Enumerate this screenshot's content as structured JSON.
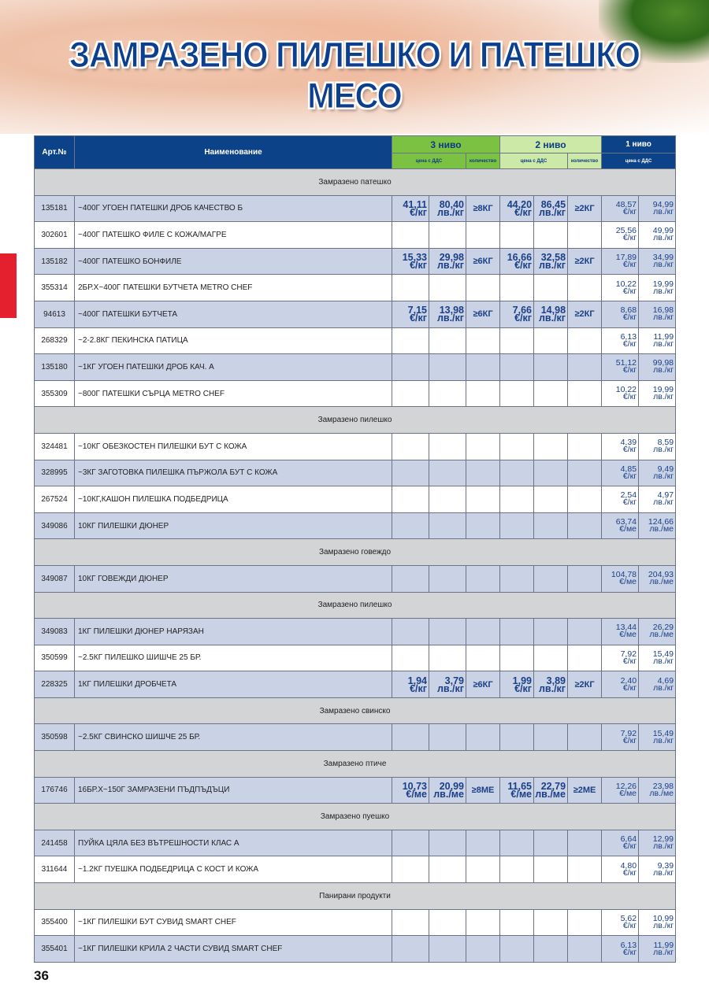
{
  "title": "ЗАМРАЗЕНО ПИЛЕШКО И ПАТЕШКО МЕСО",
  "page_number": "36",
  "colors": {
    "header_blue": "#0c4288",
    "tier3_green": "#7cc242",
    "tier2_green": "#cde9a8",
    "row_shade": "#cad3e6",
    "section_gray": "#d3d4d6",
    "side_tab_red": "#e4202e"
  },
  "header": {
    "art": "Арт.№",
    "name": "Наименование",
    "tier3": "3 ниво",
    "tier2": "2 ниво",
    "tier1": "1 ниво",
    "price_vat": "цена с ДДС",
    "quantity": "количество"
  },
  "sections": [
    {
      "title": "Замразено патешко",
      "items": [
        {
          "art": "135181",
          "name": "~400Г УГОЕН ПАТЕШКИ ДРОБ КАЧЕСТВО Б",
          "shaded": true,
          "t3": [
            "41,11",
            "€/кг",
            "80,40",
            "лв./кг",
            "≥8КГ"
          ],
          "t2": [
            "44,20",
            "€/кг",
            "86,45",
            "лв./кг",
            "≥2КГ"
          ],
          "t1": [
            "48,57",
            "€/кг",
            "94,99",
            "лв./кг"
          ]
        },
        {
          "art": "302601",
          "name": "~400Г ПАТЕШКО ФИЛЕ С КОЖА/МАГРЕ",
          "shaded": false,
          "t1": [
            "25,56",
            "€/кг",
            "49,99",
            "лв./кг"
          ]
        },
        {
          "art": "135182",
          "name": "~400Г ПАТЕШКО БОНФИЛЕ",
          "shaded": true,
          "t3": [
            "15,33",
            "€/кг",
            "29,98",
            "лв./кг",
            "≥6КГ"
          ],
          "t2": [
            "16,66",
            "€/кг",
            "32,58",
            "лв./кг",
            "≥2КГ"
          ],
          "t1": [
            "17,89",
            "€/кг",
            "34,99",
            "лв./кг"
          ]
        },
        {
          "art": "355314",
          "name": "2БР.Х~400Г ПАТЕШКИ БУТЧЕТА METRO CHEF",
          "shaded": false,
          "t1": [
            "10,22",
            "€/кг",
            "19,99",
            "лв./кг"
          ]
        },
        {
          "art": "94613",
          "name": "~400Г ПАТЕШКИ БУТЧЕТА",
          "shaded": true,
          "t3": [
            "7,15",
            "€/кг",
            "13,98",
            "лв./кг",
            "≥6КГ"
          ],
          "t2": [
            "7,66",
            "€/кг",
            "14,98",
            "лв./кг",
            "≥2КГ"
          ],
          "t1": [
            "8,68",
            "€/кг",
            "16,98",
            "лв./кг"
          ]
        },
        {
          "art": "268329",
          "name": "~2-2.8КГ ПЕКИНСКА ПАТИЦА",
          "shaded": false,
          "t1": [
            "6,13",
            "€/кг",
            "11,99",
            "лв./кг"
          ]
        },
        {
          "art": "135180",
          "name": "~1КГ УГОЕН ПАТЕШКИ ДРОБ КАЧ. А",
          "shaded": true,
          "t1": [
            "51,12",
            "€/кг",
            "99,98",
            "лв./кг"
          ]
        },
        {
          "art": "355309",
          "name": "~800Г ПАТЕШКИ СЪРЦА METRO CHEF",
          "shaded": false,
          "t1": [
            "10,22",
            "€/кг",
            "19,99",
            "лв./кг"
          ]
        }
      ]
    },
    {
      "title": "Замразено пилешко",
      "items": [
        {
          "art": "324481",
          "name": "~10КГ ОБЕЗКОСТЕН ПИЛЕШКИ БУТ С КОЖА",
          "shaded": false,
          "t1": [
            "4,39",
            "€/кг",
            "8,59",
            "лв./кг"
          ]
        },
        {
          "art": "328995",
          "name": "~3КГ ЗАГОТОВКА ПИЛЕШКА ПЪРЖОЛА БУТ С КОЖА",
          "shaded": true,
          "t1": [
            "4,85",
            "€/кг",
            "9,49",
            "лв./кг"
          ]
        },
        {
          "art": "267524",
          "name": "~10КГ,КАШОН ПИЛЕШКА ПОДБЕДРИЦА",
          "shaded": false,
          "t1": [
            "2,54",
            "€/кг",
            "4,97",
            "лв./кг"
          ]
        },
        {
          "art": "349086",
          "name": "10КГ ПИЛЕШКИ ДЮНЕР",
          "shaded": true,
          "t1": [
            "63,74",
            "€/ме",
            "124,66",
            "лв./ме"
          ]
        }
      ]
    },
    {
      "title": "Замразено говеждо",
      "items": [
        {
          "art": "349087",
          "name": "10КГ ГОВЕЖДИ ДЮНЕР",
          "shaded": true,
          "t1": [
            "104,78",
            "€/ме",
            "204,93",
            "лв./ме"
          ]
        }
      ]
    },
    {
      "title": "Замразено пилешко",
      "items": [
        {
          "art": "349083",
          "name": "1КГ ПИЛЕШКИ ДЮНЕР НАРЯЗАН",
          "shaded": true,
          "t1": [
            "13,44",
            "€/ме",
            "26,29",
            "лв./ме"
          ]
        },
        {
          "art": "350599",
          "name": "~2.5КГ ПИЛЕШКО ШИШЧЕ 25 БР.",
          "shaded": false,
          "t1": [
            "7,92",
            "€/кг",
            "15,49",
            "лв./кг"
          ]
        },
        {
          "art": "228325",
          "name": "1КГ ПИЛЕШКИ ДРОБЧЕТА",
          "shaded": true,
          "t3": [
            "1,94",
            "€/кг",
            "3,79",
            "лв./кг",
            "≥6КГ"
          ],
          "t2": [
            "1,99",
            "€/кг",
            "3,89",
            "лв./кг",
            "≥2КГ"
          ],
          "t1": [
            "2,40",
            "€/кг",
            "4,69",
            "лв./кг"
          ]
        }
      ]
    },
    {
      "title": "Замразено свинско",
      "items": [
        {
          "art": "350598",
          "name": "~2.5КГ СВИНСКО ШИШЧЕ 25 БР.",
          "shaded": true,
          "t1": [
            "7,92",
            "€/кг",
            "15,49",
            "лв./кг"
          ]
        }
      ]
    },
    {
      "title": "Замразено птиче",
      "items": [
        {
          "art": "176746",
          "name": "16БР.Х~150Г ЗАМРАЗЕНИ ПЪДПЪДЪЦИ",
          "shaded": true,
          "t3": [
            "10,73",
            "€/ме",
            "20,99",
            "лв./ме",
            "≥8МЕ"
          ],
          "t2": [
            "11,65",
            "€/ме",
            "22,79",
            "лв./ме",
            "≥2МЕ"
          ],
          "t1": [
            "12,26",
            "€/ме",
            "23,98",
            "лв./ме"
          ]
        }
      ]
    },
    {
      "title": "Замразено пуешко",
      "items": [
        {
          "art": "241458",
          "name": " ПУЙКА ЦЯЛА БЕЗ ВЪТРЕШНОСТИ КЛАС А",
          "shaded": true,
          "t1": [
            "6,64",
            "€/кг",
            "12,99",
            "лв./кг"
          ]
        },
        {
          "art": "311644",
          "name": "~1.2КГ ПУЕШКА ПОДБЕДРИЦА С КОСТ И КОЖА",
          "shaded": false,
          "t1": [
            "4,80",
            "€/кг",
            "9,39",
            "лв./кг"
          ]
        }
      ]
    },
    {
      "title": "Панирани продукти",
      "items": [
        {
          "art": "355400",
          "name": "~1КГ ПИЛЕШКИ БУТ СУВИД SMART CHEF",
          "shaded": false,
          "t1": [
            "5,62",
            "€/кг",
            "10,99",
            "лв./кг"
          ]
        },
        {
          "art": "355401",
          "name": "~1КГ ПИЛЕШКИ КРИЛА 2 ЧАСТИ СУВИД SMART CHEF",
          "shaded": true,
          "t1": [
            "6,13",
            "€/кг",
            "11,99",
            "лв./кг"
          ]
        }
      ]
    }
  ]
}
